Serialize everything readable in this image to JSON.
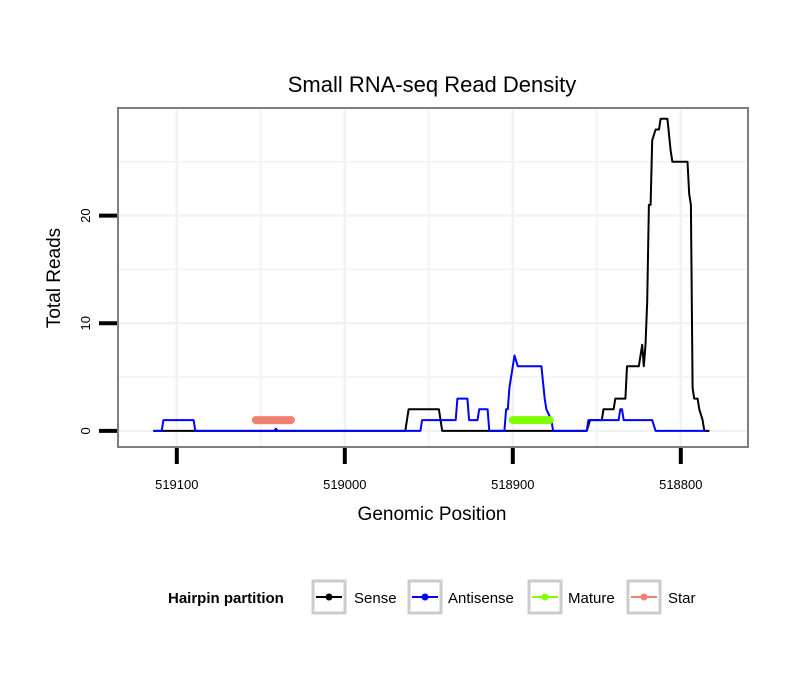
{
  "chart_data": {
    "type": "line",
    "title": "Small RNA-seq Read Density",
    "xlabel": "Genomic Position",
    "ylabel": "Total Reads",
    "x_reversed": true,
    "xlim": [
      519135,
      518760
    ],
    "ylim": [
      -1.5,
      30
    ],
    "x_ticks": [
      519100,
      519000,
      518900,
      518800
    ],
    "x_tick_labels": [
      "519100",
      "519000",
      "518900",
      "518800"
    ],
    "y_ticks": [
      0,
      10,
      20
    ],
    "y_tick_labels": [
      "0",
      "10",
      "20"
    ],
    "grid": true,
    "legend": {
      "title": "Hairpin partition",
      "position": "bottom",
      "entries": [
        {
          "name": "Sense",
          "color": "#000000"
        },
        {
          "name": "Antisense",
          "color": "#0000ff"
        },
        {
          "name": "Mature",
          "color": "#7fff00"
        },
        {
          "name": "Star",
          "color": "#f08070"
        }
      ]
    },
    "series": [
      {
        "name": "Sense",
        "color": "#000000",
        "points": [
          [
            519114,
            0
          ],
          [
            518964,
            0
          ],
          [
            518962,
            2
          ],
          [
            518944,
            2
          ],
          [
            518942,
            0
          ],
          [
            518856,
            0
          ],
          [
            518854,
            1
          ],
          [
            518847,
            1
          ],
          [
            518846,
            2
          ],
          [
            518840,
            2
          ],
          [
            518839,
            3
          ],
          [
            518833,
            3
          ],
          [
            518832,
            6
          ],
          [
            518825,
            6
          ],
          [
            518824,
            7
          ],
          [
            518823,
            8
          ],
          [
            518822,
            6
          ],
          [
            518821,
            8
          ],
          [
            518820,
            12
          ],
          [
            518819,
            21
          ],
          [
            518818,
            21
          ],
          [
            518817,
            27
          ],
          [
            518815,
            28
          ],
          [
            518813,
            28
          ],
          [
            518812,
            29
          ],
          [
            518808,
            29
          ],
          [
            518806,
            26
          ],
          [
            518805,
            25
          ],
          [
            518796,
            25
          ],
          [
            518795,
            22
          ],
          [
            518794,
            21
          ],
          [
            518793,
            4
          ],
          [
            518792,
            3
          ],
          [
            518790,
            3
          ],
          [
            518789,
            2
          ],
          [
            518787,
            1
          ],
          [
            518786,
            0
          ],
          [
            518783,
            0
          ]
        ]
      },
      {
        "name": "Antisense",
        "color": "#0000ff",
        "points": [
          [
            519114,
            0
          ],
          [
            519109,
            0
          ],
          [
            519108,
            1
          ],
          [
            519090,
            1
          ],
          [
            519089,
            0
          ],
          [
            519042,
            0
          ],
          [
            519041,
            0.2
          ],
          [
            519040,
            0
          ],
          [
            518955,
            0
          ],
          [
            518954,
            1
          ],
          [
            518934,
            1
          ],
          [
            518933,
            3
          ],
          [
            518927,
            3
          ],
          [
            518926,
            1
          ],
          [
            518921,
            1
          ],
          [
            518920,
            2
          ],
          [
            518915,
            2
          ],
          [
            518914,
            0
          ],
          [
            518905,
            0
          ],
          [
            518904,
            2
          ],
          [
            518903,
            2
          ],
          [
            518902,
            4
          ],
          [
            518900,
            6
          ],
          [
            518899,
            7
          ],
          [
            518897,
            6
          ],
          [
            518883,
            6
          ],
          [
            518881,
            3
          ],
          [
            518880,
            2
          ],
          [
            518877,
            1
          ],
          [
            518876,
            0
          ],
          [
            518856,
            0
          ],
          [
            518855,
            1
          ],
          [
            518837,
            1
          ],
          [
            518836,
            2
          ],
          [
            518835,
            2
          ],
          [
            518834,
            1
          ],
          [
            518817,
            1
          ],
          [
            518815,
            0
          ],
          [
            518785,
            0
          ]
        ]
      },
      {
        "name": "Mature",
        "color": "#7fff00",
        "points": [
          [
            518900,
            1
          ],
          [
            518878,
            1
          ]
        ]
      },
      {
        "name": "Star",
        "color": "#f08070",
        "points": [
          [
            519053,
            1
          ],
          [
            519032,
            1
          ]
        ]
      }
    ]
  }
}
